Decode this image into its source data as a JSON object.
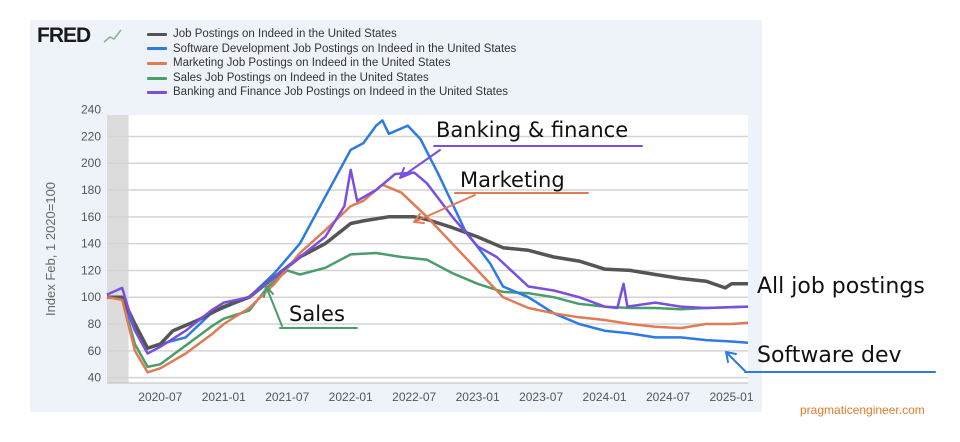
{
  "logo": "FRED",
  "credit": "pragmaticengineer.com",
  "annotations": {
    "banking": "Banking & finance",
    "marketing": "Marketing",
    "sales": "Sales",
    "all": "All job postings",
    "software": "Software dev"
  },
  "chart_data": {
    "type": "line",
    "ylabel": "Index Feb, 1 2020=100",
    "ylim": [
      36,
      236
    ],
    "xlim": [
      2020.08,
      2025.13
    ],
    "yticks": [
      40,
      60,
      80,
      100,
      120,
      140,
      160,
      180,
      200,
      220,
      240
    ],
    "xticks": [
      {
        "v": 2020.5,
        "label": "2020-07"
      },
      {
        "v": 2021.0,
        "label": "2021-01"
      },
      {
        "v": 2021.5,
        "label": "2021-07"
      },
      {
        "v": 2022.0,
        "label": "2022-01"
      },
      {
        "v": 2022.5,
        "label": "2022-07"
      },
      {
        "v": 2023.0,
        "label": "2023-01"
      },
      {
        "v": 2023.5,
        "label": "2023-07"
      },
      {
        "v": 2024.0,
        "label": "2024-01"
      },
      {
        "v": 2024.5,
        "label": "2024-07"
      },
      {
        "v": 2025.0,
        "label": "2025-01"
      }
    ],
    "recession": [
      2020.08,
      2020.25
    ],
    "grid": true,
    "series": [
      {
        "name": "Job Postings on Indeed in the United States",
        "color": "#555555",
        "points": [
          [
            2020.08,
            100
          ],
          [
            2020.2,
            100
          ],
          [
            2020.3,
            80
          ],
          [
            2020.4,
            62
          ],
          [
            2020.5,
            65
          ],
          [
            2020.6,
            75
          ],
          [
            2020.8,
            83
          ],
          [
            2021.0,
            93
          ],
          [
            2021.2,
            100
          ],
          [
            2021.4,
            115
          ],
          [
            2021.6,
            130
          ],
          [
            2021.8,
            140
          ],
          [
            2022.0,
            155
          ],
          [
            2022.1,
            157
          ],
          [
            2022.3,
            160
          ],
          [
            2022.5,
            160
          ],
          [
            2022.6,
            158
          ],
          [
            2022.8,
            152
          ],
          [
            2023.0,
            145
          ],
          [
            2023.2,
            137
          ],
          [
            2023.4,
            135
          ],
          [
            2023.6,
            130
          ],
          [
            2023.8,
            127
          ],
          [
            2024.0,
            121
          ],
          [
            2024.2,
            120
          ],
          [
            2024.4,
            117
          ],
          [
            2024.6,
            114
          ],
          [
            2024.8,
            112
          ],
          [
            2024.95,
            107
          ],
          [
            2025.0,
            110
          ],
          [
            2025.13,
            110
          ]
        ]
      },
      {
        "name": "Software Development Job Postings on Indeed in the United States",
        "color": "#2d7be0",
        "points": [
          [
            2020.08,
            100
          ],
          [
            2020.2,
            99
          ],
          [
            2020.3,
            75
          ],
          [
            2020.4,
            62
          ],
          [
            2020.5,
            65
          ],
          [
            2020.7,
            70
          ],
          [
            2020.9,
            88
          ],
          [
            2021.0,
            92
          ],
          [
            2021.2,
            100
          ],
          [
            2021.4,
            118
          ],
          [
            2021.6,
            140
          ],
          [
            2021.8,
            175
          ],
          [
            2022.0,
            210
          ],
          [
            2022.1,
            215
          ],
          [
            2022.2,
            228
          ],
          [
            2022.25,
            232
          ],
          [
            2022.3,
            222
          ],
          [
            2022.45,
            228
          ],
          [
            2022.55,
            218
          ],
          [
            2022.7,
            190
          ],
          [
            2022.9,
            150
          ],
          [
            2023.1,
            125
          ],
          [
            2023.2,
            108
          ],
          [
            2023.4,
            100
          ],
          [
            2023.6,
            88
          ],
          [
            2023.8,
            80
          ],
          [
            2024.0,
            75
          ],
          [
            2024.2,
            73
          ],
          [
            2024.4,
            70
          ],
          [
            2024.6,
            70
          ],
          [
            2024.8,
            68
          ],
          [
            2025.0,
            67
          ],
          [
            2025.13,
            66
          ]
        ]
      },
      {
        "name": "Marketing Job Postings on Indeed in the United States",
        "color": "#e07b56",
        "points": [
          [
            2020.08,
            100
          ],
          [
            2020.2,
            98
          ],
          [
            2020.3,
            60
          ],
          [
            2020.4,
            44
          ],
          [
            2020.5,
            47
          ],
          [
            2020.7,
            58
          ],
          [
            2020.9,
            72
          ],
          [
            2021.0,
            80
          ],
          [
            2021.2,
            92
          ],
          [
            2021.4,
            110
          ],
          [
            2021.6,
            133
          ],
          [
            2021.8,
            150
          ],
          [
            2022.0,
            168
          ],
          [
            2022.1,
            172
          ],
          [
            2022.25,
            184
          ],
          [
            2022.4,
            178
          ],
          [
            2022.6,
            160
          ],
          [
            2022.8,
            140
          ],
          [
            2023.0,
            120
          ],
          [
            2023.2,
            100
          ],
          [
            2023.4,
            92
          ],
          [
            2023.6,
            88
          ],
          [
            2023.8,
            85
          ],
          [
            2024.0,
            83
          ],
          [
            2024.2,
            80
          ],
          [
            2024.4,
            78
          ],
          [
            2024.6,
            77
          ],
          [
            2024.8,
            80
          ],
          [
            2025.0,
            80
          ],
          [
            2025.13,
            81
          ]
        ]
      },
      {
        "name": "Sales Job Postings on Indeed in the United States",
        "color": "#4a9d6a",
        "points": [
          [
            2020.08,
            100
          ],
          [
            2020.2,
            99
          ],
          [
            2020.3,
            65
          ],
          [
            2020.4,
            48
          ],
          [
            2020.5,
            50
          ],
          [
            2020.7,
            64
          ],
          [
            2020.9,
            78
          ],
          [
            2021.0,
            84
          ],
          [
            2021.2,
            90
          ],
          [
            2021.35,
            108
          ],
          [
            2021.5,
            120
          ],
          [
            2021.6,
            117
          ],
          [
            2021.8,
            122
          ],
          [
            2022.0,
            132
          ],
          [
            2022.2,
            133
          ],
          [
            2022.4,
            130
          ],
          [
            2022.6,
            128
          ],
          [
            2022.8,
            118
          ],
          [
            2023.0,
            110
          ],
          [
            2023.2,
            104
          ],
          [
            2023.4,
            103
          ],
          [
            2023.6,
            100
          ],
          [
            2023.8,
            95
          ],
          [
            2024.0,
            93
          ],
          [
            2024.2,
            92
          ],
          [
            2024.4,
            92
          ],
          [
            2024.6,
            91
          ],
          [
            2024.8,
            92
          ],
          [
            2025.13,
            93
          ]
        ]
      },
      {
        "name": "Banking and Finance Job Postings on Indeed in the United States",
        "color": "#7a4fe0",
        "points": [
          [
            2020.08,
            102
          ],
          [
            2020.2,
            107
          ],
          [
            2020.3,
            75
          ],
          [
            2020.4,
            58
          ],
          [
            2020.5,
            63
          ],
          [
            2020.7,
            75
          ],
          [
            2020.9,
            90
          ],
          [
            2021.0,
            96
          ],
          [
            2021.2,
            100
          ],
          [
            2021.4,
            115
          ],
          [
            2021.6,
            130
          ],
          [
            2021.8,
            145
          ],
          [
            2021.95,
            168
          ],
          [
            2022.0,
            195
          ],
          [
            2022.05,
            172
          ],
          [
            2022.2,
            180
          ],
          [
            2022.35,
            192
          ],
          [
            2022.5,
            193
          ],
          [
            2022.6,
            185
          ],
          [
            2022.8,
            160
          ],
          [
            2023.0,
            138
          ],
          [
            2023.15,
            130
          ],
          [
            2023.4,
            108
          ],
          [
            2023.6,
            105
          ],
          [
            2023.8,
            100
          ],
          [
            2024.0,
            93
          ],
          [
            2024.1,
            92
          ],
          [
            2024.15,
            110
          ],
          [
            2024.18,
            93
          ],
          [
            2024.4,
            96
          ],
          [
            2024.6,
            93
          ],
          [
            2024.8,
            92
          ],
          [
            2025.13,
            93
          ]
        ]
      }
    ]
  }
}
